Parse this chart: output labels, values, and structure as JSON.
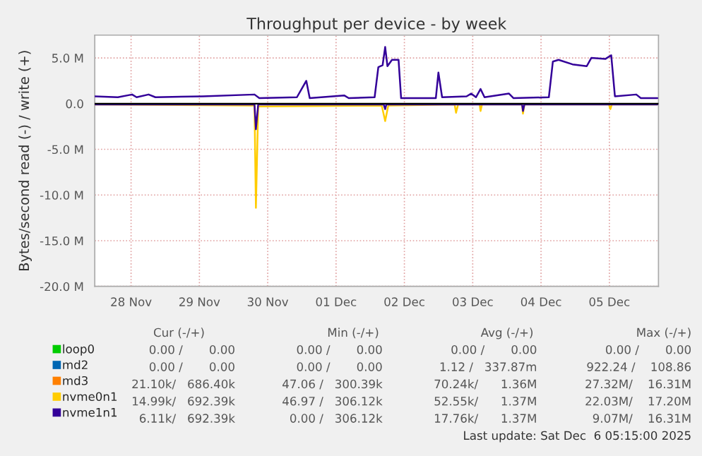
{
  "chart_data": {
    "type": "line",
    "title": "Throughput per device - by week",
    "ylabel": "Bytes/second read (-) / write (+)",
    "xlim": [
      "2025-11-27T23:15",
      "2025-12-06T05:15"
    ],
    "xticks": [
      {
        "value": "2025-11-28T12:00",
        "label": "28 Nov"
      },
      {
        "value": "2025-11-29T12:00",
        "label": "29 Nov"
      },
      {
        "value": "2025-11-30T12:00",
        "label": "30 Nov"
      },
      {
        "value": "2025-12-01T12:00",
        "label": "01 Dec"
      },
      {
        "value": "2025-12-02T12:00",
        "label": "02 Dec"
      },
      {
        "value": "2025-12-03T12:00",
        "label": "03 Dec"
      },
      {
        "value": "2025-12-04T12:00",
        "label": "04 Dec"
      },
      {
        "value": "2025-12-05T12:00",
        "label": "05 Dec"
      }
    ],
    "ylim": [
      -20,
      7.5
    ],
    "yticks": [
      {
        "value": -20,
        "label": "-20.0 M"
      },
      {
        "value": -15,
        "label": "-15.0 M"
      },
      {
        "value": -10,
        "label": "-10.0 M"
      },
      {
        "value": -5,
        "label": "-5.0 M"
      },
      {
        "value": 0,
        "label": "0.0"
      },
      {
        "value": 5,
        "label": "5.0 M"
      }
    ],
    "grid": true,
    "legend": "bottom left",
    "ref_lines": [
      {
        "axis": "y",
        "value": 0,
        "color": "#000000"
      }
    ],
    "series": [
      {
        "name": "loop0",
        "color": "#00cc00"
      },
      {
        "name": "md2",
        "color": "#0066b3"
      },
      {
        "name": "md3",
        "color": "#ff8000"
      },
      {
        "name": "nvme0n1",
        "color": "#ffcc00",
        "x": [
          "2025-11-27T23:15",
          "2025-11-30T07:21",
          "2025-11-30T07:51",
          "2025-11-30T08:39",
          "2025-12-02T04:03",
          "2025-12-02T05:15",
          "2025-12-02T06:21",
          "2025-12-03T05:39",
          "2025-12-03T06:09",
          "2025-12-03T06:51",
          "2025-12-03T14:27",
          "2025-12-03T14:45",
          "2025-12-03T15:15",
          "2025-12-04T05:21",
          "2025-12-04T05:39",
          "2025-12-04T06:09",
          "2025-12-05T11:51",
          "2025-12-05T12:21",
          "2025-12-05T12:51",
          "2025-12-06T04:51"
        ],
        "values": [
          -0.1,
          -0.2,
          -11.4,
          -0.3,
          -0.2,
          -1.9,
          -0.2,
          -0.1,
          -1.0,
          -0.1,
          -0.1,
          -0.8,
          -0.1,
          -0.1,
          -1.1,
          -0.1,
          -0.1,
          -0.6,
          -0.1,
          -0.1
        ]
      },
      {
        "name": "nvme1n1",
        "color": "#330099",
        "x": [
          "2025-11-27T23:15",
          "2025-11-28T07:21",
          "2025-11-28T12:21",
          "2025-11-28T13:57",
          "2025-11-28T18:09",
          "2025-11-28T20:33",
          "2025-11-29T13:09",
          "2025-11-30T07:21",
          "2025-11-30T09:03",
          "2025-11-30T22:15",
          "2025-12-01T00:15",
          "2025-12-01T01:33",
          "2025-12-01T02:45",
          "2025-12-01T14:51",
          "2025-12-01T16:27",
          "2025-12-02T01:33",
          "2025-12-02T02:51",
          "2025-12-02T04:21",
          "2025-12-02T05:15",
          "2025-12-02T06:03",
          "2025-12-02T07:39",
          "2025-12-02T09:57",
          "2025-12-02T10:51",
          "2025-12-02T23:03",
          "2025-12-02T23:57",
          "2025-12-03T01:15",
          "2025-12-03T09:51",
          "2025-12-03T11:27",
          "2025-12-03T13:09",
          "2025-12-03T14:45",
          "2025-12-03T16:09",
          "2025-12-04T00:45",
          "2025-12-04T02:21",
          "2025-12-04T14:45",
          "2025-12-04T16:09",
          "2025-12-04T18:09",
          "2025-12-04T23:03",
          "2025-12-05T04:03",
          "2025-12-05T05:39",
          "2025-12-05T10:39",
          "2025-12-05T12:39",
          "2025-12-05T13:57",
          "2025-12-05T21:27",
          "2025-12-05T23:03",
          "2025-12-06T04:51"
        ],
        "values": [
          0.8,
          0.7,
          1.0,
          0.7,
          1.0,
          0.7,
          0.8,
          1.0,
          0.6,
          0.7,
          1.8,
          2.5,
          0.6,
          0.9,
          0.6,
          0.7,
          4.0,
          4.2,
          6.2,
          4.1,
          4.8,
          4.8,
          0.6,
          0.6,
          3.4,
          0.7,
          0.8,
          1.1,
          0.7,
          1.6,
          0.7,
          1.1,
          0.6,
          0.7,
          4.6,
          4.8,
          4.3,
          4.1,
          5.0,
          4.9,
          5.3,
          0.8,
          1.0,
          0.6,
          0.6
        ]
      },
      {
        "color": "#330099",
        "x": [
          "2025-11-27T23:15",
          "2025-11-30T07:21",
          "2025-11-30T07:51",
          "2025-11-30T08:39",
          "2025-12-02T04:45",
          "2025-12-02T05:15",
          "2025-12-02T05:39",
          "2025-12-04T05:21",
          "2025-12-04T05:39",
          "2025-12-04T06:09",
          "2025-12-06T04:51"
        ],
        "values": [
          -0.1,
          -0.1,
          -2.8,
          -0.1,
          -0.1,
          -0.6,
          -0.1,
          -0.1,
          -0.8,
          -0.1,
          -0.1
        ]
      }
    ],
    "annotations": [
      "Cur (-/+)",
      "Min (-/+)",
      "Avg (-/+)",
      "Max (-/+)",
      "0.00 /       0.00",
      "0.00 /       0.00",
      "0.00 /       0.00",
      "0.00 /       0.00",
      "0.00 /       0.00",
      "0.00 /       0.00",
      "1.12 /   337.87m",
      "922.24 /    108.86",
      "21.10k/   686.40k",
      "47.06 /   300.39k",
      "70.24k/      1.36M",
      "27.32M/    16.31M",
      "14.99k/   692.39k",
      "46.97 /   306.12k",
      "52.55k/      1.37M",
      "22.03M/    17.20M",
      "6.11k/   692.39k",
      "0.00 /   306.12k",
      "17.76k/      1.37M",
      "9.07M/    16.31M",
      "Last update: Sat Dec  6 05:15:00 2025"
    ]
  }
}
